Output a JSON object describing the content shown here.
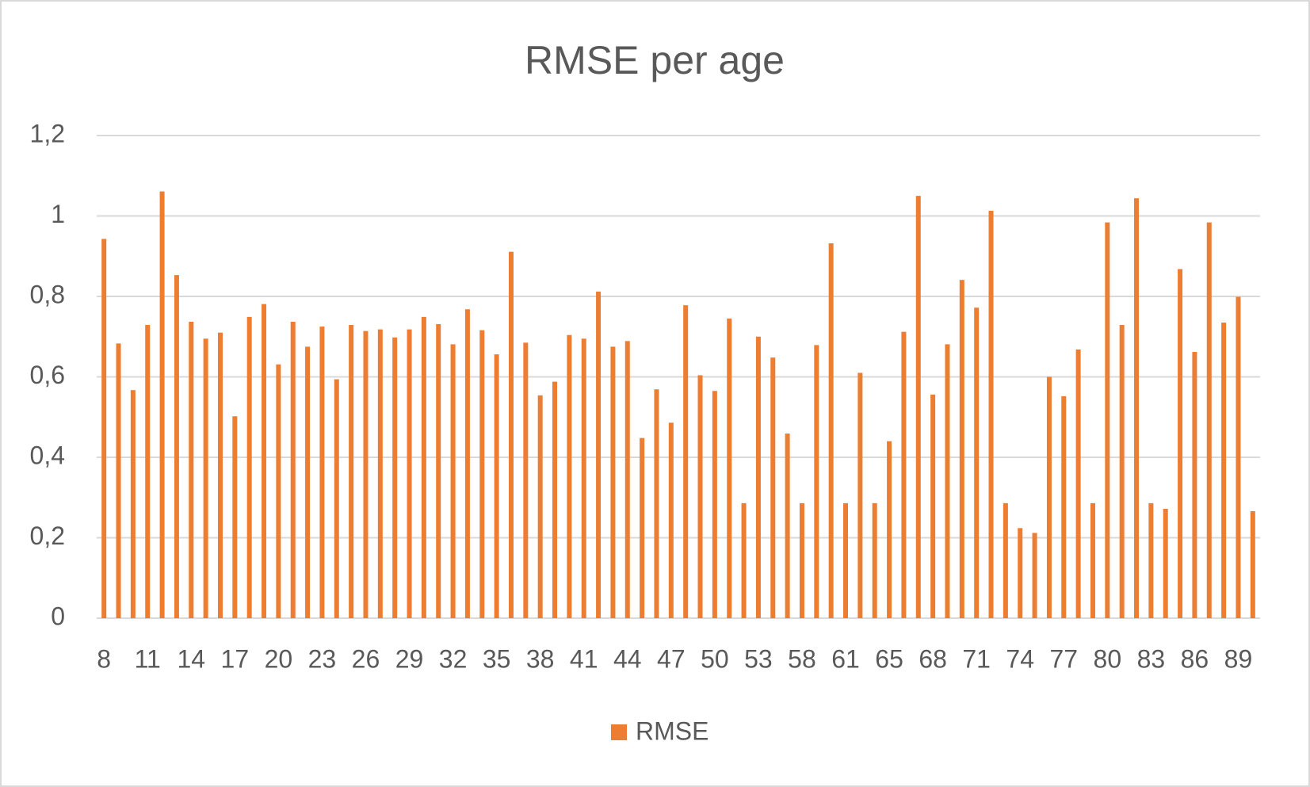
{
  "chart_data": {
    "type": "bar",
    "title": "RMSE per age",
    "categories": [
      "8",
      null,
      null,
      "11",
      null,
      null,
      "14",
      null,
      null,
      "17",
      null,
      null,
      "20",
      null,
      null,
      "23",
      null,
      null,
      "26",
      null,
      null,
      "29",
      null,
      null,
      "32",
      null,
      null,
      "35",
      null,
      null,
      "38",
      null,
      null,
      "41",
      null,
      null,
      "44",
      null,
      null,
      "47",
      null,
      null,
      "50",
      null,
      null,
      "53",
      null,
      null,
      "58",
      null,
      null,
      "61",
      null,
      null,
      "65",
      null,
      null,
      "68",
      null,
      null,
      "71",
      null,
      null,
      "74",
      null,
      null,
      "77",
      null,
      null,
      "80",
      null,
      null,
      "83",
      null,
      null,
      "86",
      null,
      null,
      "89",
      null
    ],
    "series": [
      {
        "name": "RMSE",
        "color": "#ed7d31",
        "values": [
          0.943,
          0.683,
          0.567,
          0.729,
          1.061,
          0.853,
          0.737,
          0.695,
          0.71,
          0.502,
          0.749,
          0.781,
          0.631,
          0.737,
          0.675,
          0.725,
          0.594,
          0.729,
          0.714,
          0.718,
          0.698,
          0.718,
          0.749,
          0.731,
          0.681,
          0.768,
          0.716,
          0.656,
          0.911,
          0.685,
          0.554,
          0.588,
          0.704,
          0.695,
          0.812,
          0.675,
          0.689,
          0.448,
          0.569,
          0.486,
          0.778,
          0.604,
          0.565,
          0.745,
          0.286,
          0.7,
          0.648,
          0.459,
          0.286,
          0.679,
          0.932,
          0.286,
          0.61,
          0.286,
          0.44,
          0.712,
          1.05,
          0.556,
          0.681,
          0.841,
          0.772,
          1.013,
          0.286,
          0.224,
          0.212,
          0.6,
          0.552,
          0.668,
          0.286,
          0.984,
          0.729,
          1.044,
          0.286,
          0.272,
          0.868,
          0.662,
          0.984,
          0.735,
          0.799,
          0.266
        ]
      }
    ],
    "ylim": [
      0,
      1.2
    ],
    "yticks": [
      0,
      {
        "value": 0.2,
        "label": "0,2"
      },
      {
        "value": 0.4,
        "label": "0,4"
      },
      {
        "value": 0.6,
        "label": "0,6"
      },
      {
        "value": 0.8,
        "label": "0,8"
      },
      1,
      {
        "value": 1.2,
        "label": "1,2"
      }
    ],
    "grid": true,
    "legend": "bottom"
  }
}
